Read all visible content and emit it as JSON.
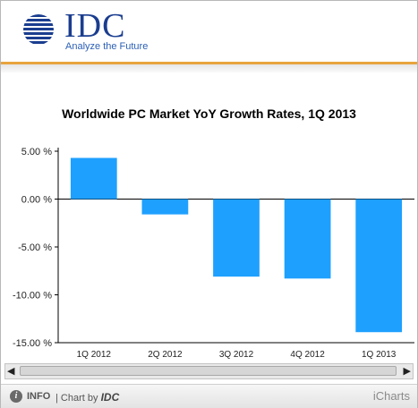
{
  "header": {
    "brand": "IDC",
    "tagline": "Analyze the Future"
  },
  "chart_data": {
    "type": "bar",
    "title": "Worldwide PC Market YoY Growth  Rates, 1Q 2013",
    "categories": [
      "1Q 2012",
      "2Q 2012",
      "3Q 2012",
      "4Q 2012",
      "1Q 2013"
    ],
    "values": [
      4.3,
      -1.6,
      -8.1,
      -8.3,
      -13.9
    ],
    "ylim": [
      -15,
      5
    ],
    "yticks": [
      5,
      0,
      -5,
      -10,
      -15
    ],
    "ytick_labels": [
      "5.00 %",
      "0.00 %",
      "-5.00 %",
      "-10.00 %",
      "-15.00 %"
    ],
    "bar_color": "#1ea0ff",
    "grid": false
  },
  "footer": {
    "info_label": "INFO",
    "chart_by_prefix": "| Chart by",
    "chart_by_brand": "IDC",
    "provider": "iCharts"
  },
  "scrollbar": {
    "left_arrow": "◀",
    "right_arrow": "▶"
  }
}
